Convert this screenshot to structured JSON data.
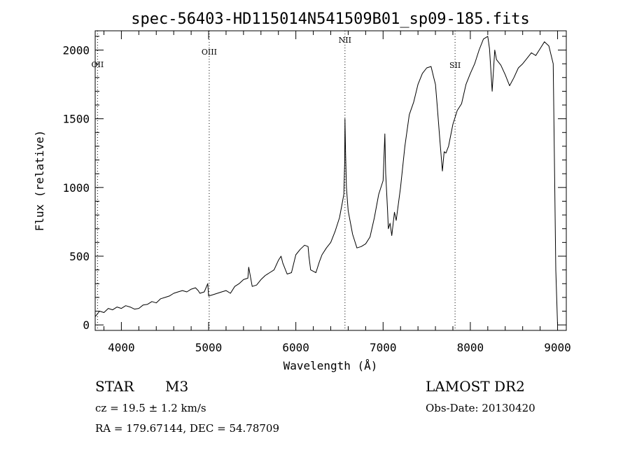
{
  "chart_data": {
    "type": "line",
    "title": "spec-56403-HD115014N541509B01_sp09-185.fits",
    "xlabel": "Wavelength (Å)",
    "ylabel": "Flux (relative)",
    "xlim": [
      3700,
      9100
    ],
    "ylim": [
      -40,
      2140
    ],
    "x_ticks": [
      4000,
      5000,
      6000,
      7000,
      8000,
      9000
    ],
    "y_ticks": [
      0,
      500,
      1000,
      1500,
      2000
    ],
    "grid": false,
    "lines": [
      {
        "label": "OII",
        "x": 3727
      },
      {
        "label": "OIII",
        "x": 5007
      },
      {
        "label": "NII",
        "x": 6563
      },
      {
        "label": "SII",
        "x": 7825
      }
    ],
    "series": [
      {
        "x": [
          3700,
          3750,
          3800,
          3850,
          3900,
          3950,
          4000,
          4050,
          4100,
          4150,
          4200,
          4250,
          4300,
          4350,
          4400,
          4450,
          4500,
          4550,
          4600,
          4650,
          4700,
          4750,
          4800,
          4850,
          4880,
          4900,
          4950,
          4990,
          5000,
          5050,
          5100,
          5150,
          5200,
          5250,
          5300,
          5350,
          5400,
          5450,
          5460,
          5500,
          5550,
          5600,
          5650,
          5700,
          5750,
          5800,
          5830,
          5850,
          5900,
          5950,
          6000,
          6050,
          6100,
          6140,
          6150,
          6170,
          6200,
          6230,
          6270,
          6300,
          6350,
          6400,
          6450,
          6500,
          6530,
          6550,
          6560,
          6563,
          6570,
          6580,
          6600,
          6650,
          6700,
          6750,
          6800,
          6850,
          6900,
          6950,
          7000,
          7020,
          7030,
          7050,
          7060,
          7080,
          7100,
          7130,
          7150,
          7200,
          7250,
          7300,
          7350,
          7400,
          7450,
          7500,
          7550,
          7580,
          7600,
          7620,
          7650,
          7680,
          7700,
          7720,
          7750,
          7800,
          7850,
          7900,
          7950,
          8000,
          8050,
          8100,
          8150,
          8200,
          8220,
          8250,
          8280,
          8300,
          8350,
          8400,
          8450,
          8500,
          8550,
          8600,
          8650,
          8700,
          8750,
          8800,
          8850,
          8900,
          8950,
          8980,
          9000
        ],
        "y": [
          60,
          100,
          90,
          120,
          110,
          130,
          120,
          140,
          130,
          115,
          120,
          145,
          150,
          170,
          160,
          190,
          200,
          210,
          230,
          240,
          250,
          240,
          260,
          270,
          250,
          230,
          240,
          300,
          210,
          220,
          230,
          240,
          250,
          230,
          280,
          300,
          330,
          340,
          420,
          280,
          290,
          330,
          360,
          380,
          400,
          470,
          500,
          450,
          370,
          380,
          510,
          550,
          580,
          570,
          500,
          400,
          390,
          380,
          460,
          510,
          560,
          600,
          680,
          780,
          880,
          950,
          1180,
          1500,
          1250,
          1000,
          830,
          660,
          560,
          570,
          590,
          640,
          780,
          950,
          1050,
          1390,
          1100,
          850,
          700,
          740,
          650,
          820,
          760,
          1000,
          1300,
          1530,
          1620,
          1750,
          1830,
          1870,
          1880,
          1800,
          1750,
          1600,
          1350,
          1120,
          1260,
          1250,
          1300,
          1460,
          1560,
          1610,
          1750,
          1830,
          1900,
          2000,
          2080,
          2100,
          2010,
          1700,
          2000,
          1930,
          1890,
          1820,
          1740,
          1800,
          1870,
          1900,
          1940,
          1980,
          1960,
          2010,
          2060,
          2030,
          1900,
          400,
          0
        ]
      }
    ]
  },
  "info": {
    "object_class": "STAR",
    "subclass": "M3",
    "cz": "cz = 19.5 ± 1.2 km/s",
    "coords": "RA = 179.67144, DEC =  54.78709",
    "survey": "LAMOST DR2",
    "obs_date": "Obs-Date: 20130420"
  }
}
